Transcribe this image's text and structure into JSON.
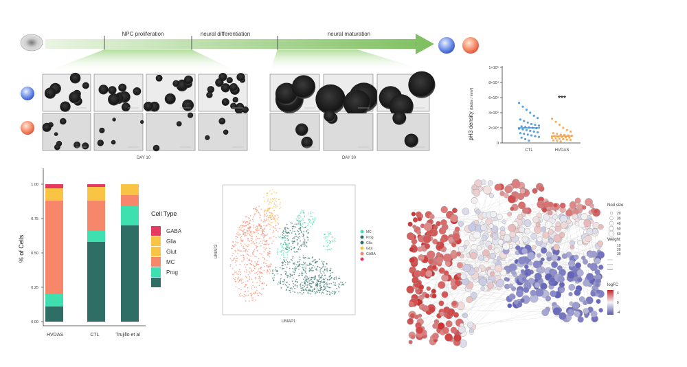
{
  "timeline": {
    "phase_labels": [
      "NPC proliferation",
      "neural differentiation",
      "neural maturation"
    ],
    "day_labels": [
      "DAY 10",
      "DAY 30"
    ]
  },
  "colors": {
    "GABA": "#e6395f",
    "Glia": "#f9c443",
    "Glut": "#f9c443",
    "MC": "#f6876a",
    "Prog": "#3fe0b0",
    "Dark": "#2e6e64",
    "ctl_blue": "#3a8fe0",
    "hvdas_orange": "#f5a040",
    "arrow_green": "#8ac46a"
  },
  "chart_data": [
    {
      "type": "scatter",
      "ylabel": "pH3 density",
      "ylabel_unit": "(blobs / mm³)",
      "ytick_labels": [
        "0",
        "2×10⁴",
        "4×10⁴",
        "6×10⁴",
        "8×10⁴",
        "1×10⁵"
      ],
      "ylim": [
        0,
        100000
      ],
      "categories": [
        "CTL",
        "HVDAS"
      ],
      "medians": [
        20000,
        9000
      ],
      "annotation": "***",
      "series": [
        {
          "name": "CTL",
          "values": [
            53000,
            48000,
            44000,
            40000,
            36000,
            33000,
            31000,
            29000,
            27000,
            25000,
            24000,
            23000,
            22000,
            21000,
            20500,
            20000,
            19500,
            19000,
            18000,
            17000,
            16000,
            15000,
            14000,
            13000,
            12000,
            11000,
            10000,
            9000,
            8000,
            7000,
            5000,
            3000
          ]
        },
        {
          "name": "HVDAS",
          "values": [
            32000,
            28000,
            24000,
            20000,
            17000,
            15000,
            13000,
            12000,
            11000,
            10500,
            10000,
            9500,
            9000,
            8500,
            8000,
            7500,
            7000,
            6500,
            6000,
            5500,
            5000,
            4500,
            4000,
            3500,
            3000,
            2000
          ]
        }
      ]
    },
    {
      "type": "bar",
      "stacked": true,
      "ylabel": "% of Cells",
      "ylim": [
        0,
        1
      ],
      "ytick_labels": [
        "0.00",
        "0.25",
        "0.50",
        "0.75",
        "1.00"
      ],
      "categories": [
        "HVDAS",
        "CTL",
        "Trujillo et al"
      ],
      "legend_title": "Cell Type",
      "legend_labels": [
        "GABA",
        "Glia",
        "Glut",
        "MC",
        "Prog"
      ],
      "series": [
        {
          "name": "Dark",
          "values": [
            0.11,
            0.58,
            0.7
          ]
        },
        {
          "name": "Prog",
          "values": [
            0.09,
            0.08,
            0.14
          ]
        },
        {
          "name": "MC",
          "values": [
            0.68,
            0.22,
            0.08
          ]
        },
        {
          "name": "Glut",
          "values": [
            0.09,
            0.1,
            0.08
          ]
        },
        {
          "name": "GABA",
          "values": [
            0.03,
            0.02,
            0.0
          ]
        }
      ]
    },
    {
      "type": "scatter",
      "xlabel": "UMAP1",
      "ylabel": "UMAP2",
      "legend_labels": [
        "MC",
        "Prog",
        "Glia",
        "Glut",
        "GABA"
      ]
    }
  ],
  "network": {
    "legend_size_title": "Nod size",
    "legend_size_values": [
      "20",
      "30",
      "40",
      "50",
      "60"
    ],
    "legend_weight_title": "Weight",
    "legend_weight_values": [
      "10",
      "20",
      "30"
    ],
    "legend_fc_title": "logFC",
    "legend_fc_values": [
      "4",
      "0",
      "-4"
    ]
  }
}
